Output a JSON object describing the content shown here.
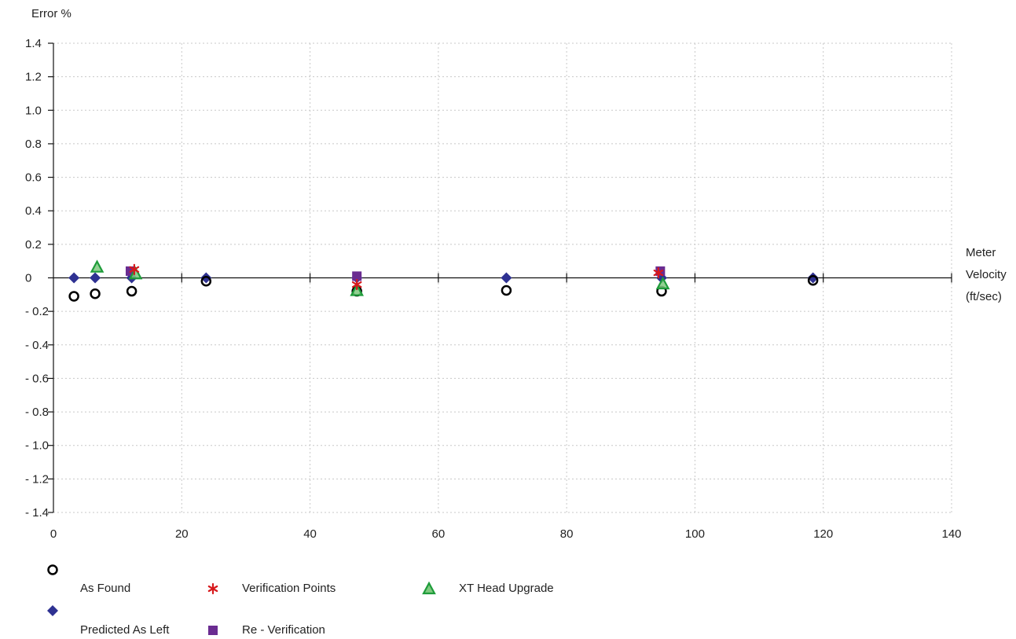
{
  "chart_data": {
    "type": "scatter",
    "ylabel": "Error %",
    "xlabel_lines": [
      "Meter",
      "Velocity",
      "(ft/sec)"
    ],
    "xlim": [
      0,
      140
    ],
    "ylim": [
      -1.4,
      1.4
    ],
    "x_ticks": [
      "0",
      "20",
      "40",
      "60",
      "80",
      "100",
      "120",
      "140"
    ],
    "y_ticks": [
      "1.4",
      "1.2",
      "1.0",
      "0.8",
      "0.6",
      "0.4",
      "0.2",
      "0",
      "- 0.2",
      "- 0.4",
      "- 0.6",
      "- 0.8",
      "- 1.0",
      "- 1.2",
      "- 1.4"
    ],
    "grid": true,
    "series": [
      {
        "name": "As Found",
        "marker": "circle-open",
        "color": "#000000",
        "points": [
          [
            3.2,
            -0.11
          ],
          [
            6.5,
            -0.095
          ],
          [
            12.2,
            -0.08
          ],
          [
            23.8,
            -0.02
          ],
          [
            47.3,
            -0.08
          ],
          [
            70.6,
            -0.075
          ],
          [
            94.8,
            -0.08
          ],
          [
            118.4,
            -0.015
          ]
        ]
      },
      {
        "name": "Predicted As Left",
        "marker": "diamond",
        "color": "#2e3192",
        "points": [
          [
            3.2,
            0.0
          ],
          [
            6.5,
            0.0
          ],
          [
            12.2,
            0.0
          ],
          [
            23.8,
            0.0
          ],
          [
            47.3,
            0.0
          ],
          [
            70.6,
            0.0
          ],
          [
            94.8,
            0.0
          ],
          [
            118.4,
            0.0
          ]
        ]
      },
      {
        "name": "Verification Points",
        "marker": "asterisk",
        "color": "#d7191c",
        "points": [
          [
            12.6,
            0.05
          ],
          [
            47.3,
            -0.04
          ],
          [
            94.3,
            0.03
          ]
        ]
      },
      {
        "name": "Re - Verification",
        "marker": "square",
        "color": "#6a2c91",
        "points": [
          [
            12.0,
            0.04
          ],
          [
            47.3,
            0.01
          ],
          [
            94.6,
            0.04
          ]
        ]
      },
      {
        "name": "XT Head Upgrade",
        "marker": "triangle",
        "color": "#1e9c3a",
        "points": [
          [
            6.8,
            0.06
          ],
          [
            12.8,
            0.02
          ],
          [
            47.3,
            -0.08
          ],
          [
            95.0,
            -0.04
          ]
        ]
      }
    ]
  },
  "legend": {
    "as_found": "As Found",
    "predicted_as_left": "Predicted As Left",
    "verification_points": "Verification Points",
    "re_verification": "Re - Verification",
    "xt_head_upgrade": "XT Head Upgrade"
  }
}
